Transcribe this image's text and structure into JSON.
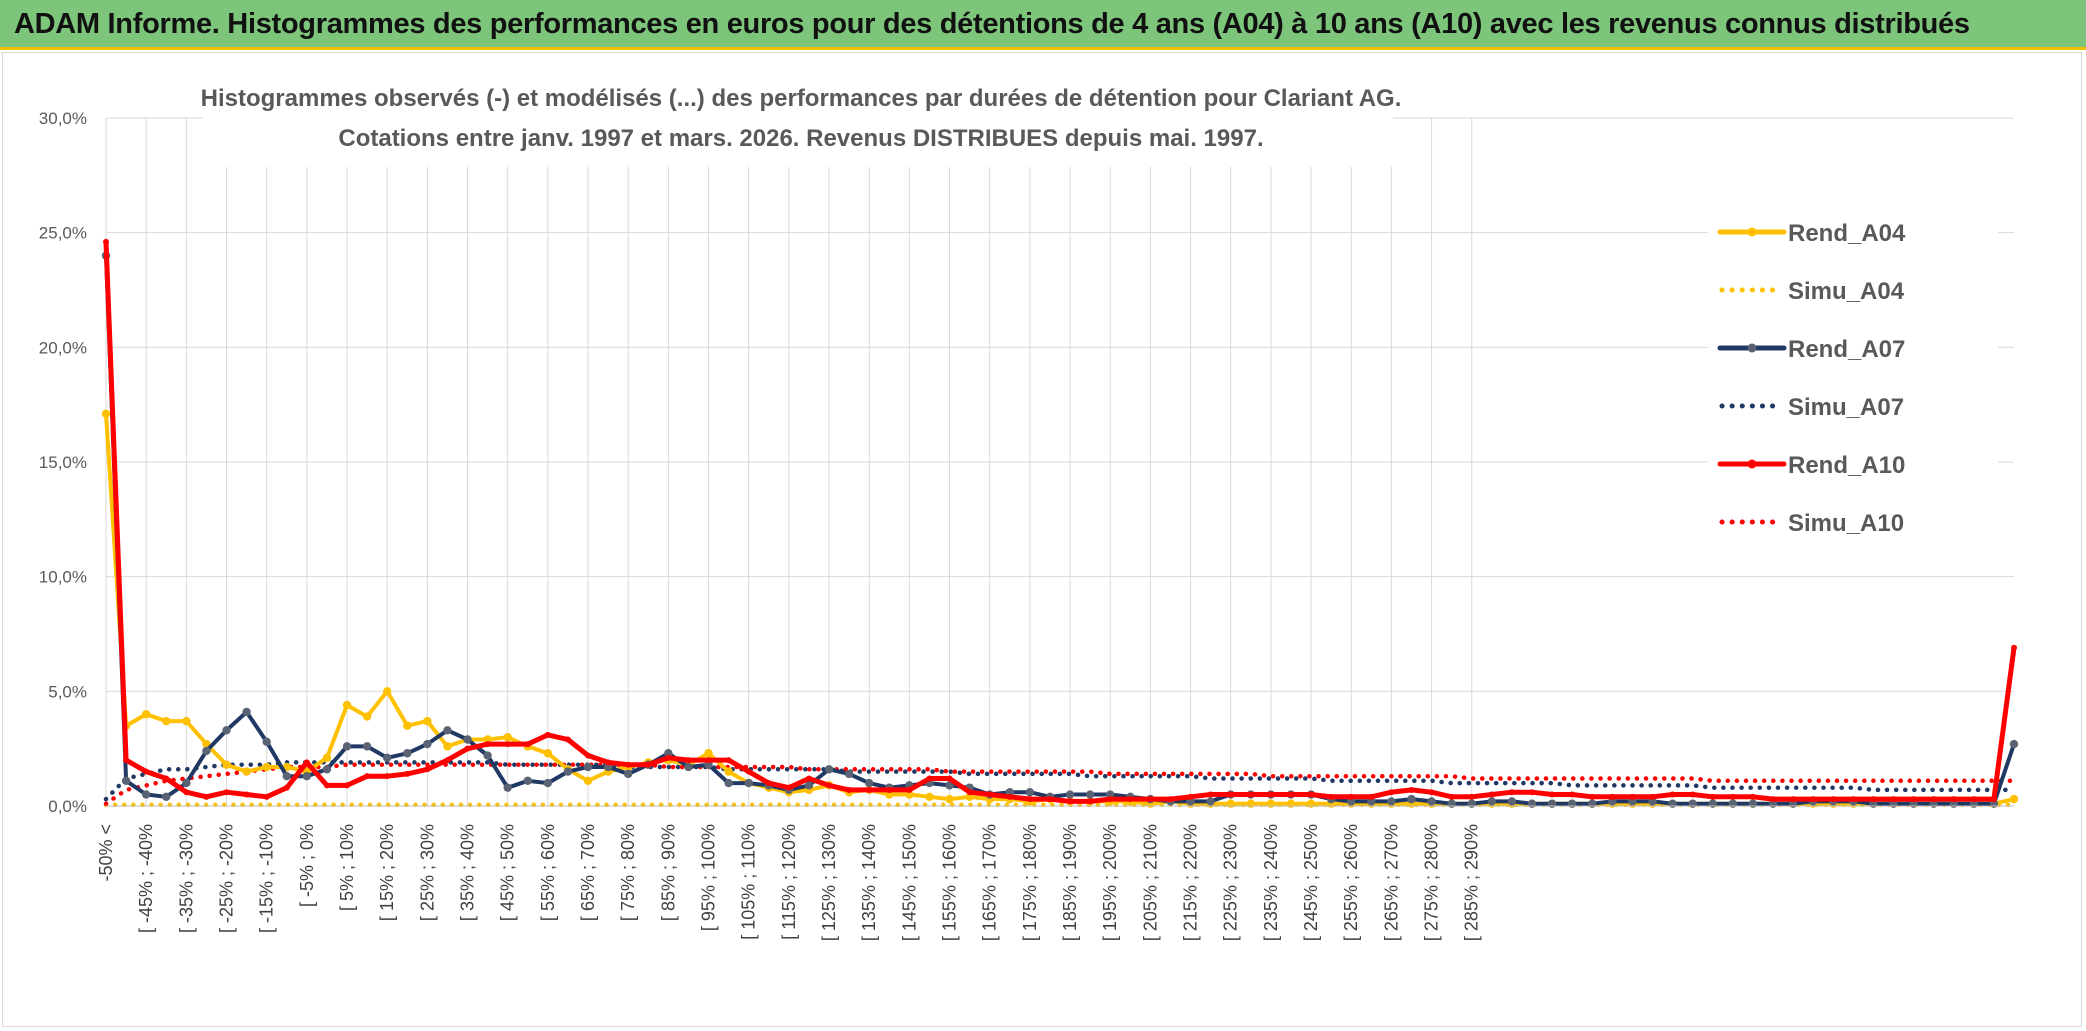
{
  "banner": {
    "title": "ADAM Informe. Histogrammes des performances en euros pour des détentions de 4 ans (A04) à 10 ans (A10) avec les revenus connus distribués"
  },
  "chart_data": {
    "type": "line",
    "title": "Histogrammes observés (-) et modélisés (...) des performances par durées de détention pour Clariant AG.",
    "subtitle": "Cotations entre janv. 1997 et mars. 2026. Revenus DISTRIBUES depuis mai. 1997.",
    "ylim": [
      0,
      30
    ],
    "yticks": [
      "0,0%",
      "5,0%",
      "10,0%",
      "15,0%",
      "20,0%",
      "25,0%",
      "30,0%"
    ],
    "grid": true,
    "legend_position": "right",
    "x_tick_labels": [
      "-50% <",
      "[ -45% ; -40%",
      "[ -35% ; -30%",
      "[ -25% ; -20%",
      "[ -15% ; -10%",
      "[ -5% ; 0%",
      "[ 5% ; 10%",
      "[ 15% ; 20%",
      "[ 25% ; 30%",
      "[ 35% ; 40%",
      "[ 45% ; 50%",
      "[ 55% ; 60%",
      "[ 65% ; 70%",
      "[ 75% ; 80%",
      "[ 85% ; 90%",
      "[ 95% ; 100%",
      "[ 105% ; 110%",
      "[ 115% ; 120%",
      "[ 125% ; 130%",
      "[ 135% ; 140%",
      "[ 145% ; 150%",
      "[ 155% ; 160%",
      "[ 165% ; 170%",
      "[ 175% ; 180%",
      "[ 185% ; 190%",
      "[ 195% ; 200%",
      "[ 205% ; 210%",
      "[ 215% ; 220%",
      "[ 225% ; 230%",
      "[ 235% ; 240%",
      "[ 245% ; 250%",
      "[ 255% ; 260%",
      "[ 265% ; 270%",
      "[ 275% ; 280%",
      "[ 285% ; 290%"
    ],
    "series": [
      {
        "name": "Rend_A04",
        "style": "solid",
        "color": "#ffc000",
        "values": [
          17.1,
          3.5,
          4.0,
          3.7,
          3.7,
          2.7,
          1.8,
          1.5,
          1.7,
          1.7,
          1.5,
          2.1,
          4.4,
          3.9,
          5.0,
          3.5,
          3.7,
          2.6,
          2.9,
          2.9,
          3.0,
          2.6,
          2.3,
          1.6,
          1.1,
          1.5,
          1.7,
          1.9,
          2.0,
          1.8,
          2.3,
          1.5,
          1.0,
          0.8,
          0.6,
          0.7,
          0.9,
          0.6,
          0.7,
          0.5,
          0.5,
          0.4,
          0.3,
          0.4,
          0.3,
          0.3,
          0.2,
          0.3,
          0.2,
          0.2,
          0.2,
          0.2,
          0.1,
          0.2,
          0.1,
          0.1,
          0.1,
          0.1,
          0.1,
          0.1,
          0.1,
          0.1,
          0.1,
          0.1,
          0.1,
          0.1,
          0.1,
          0.1,
          0.1,
          0.1,
          0.1,
          0.1,
          0.1,
          0.1,
          0.1,
          0.1,
          0.1,
          0.1,
          0.1,
          0.1,
          0.1,
          0.1,
          0.1,
          0.1,
          0.1,
          0.1,
          0.1,
          0.1,
          0.1,
          0.1,
          0.1,
          0.1,
          0.1,
          0.1,
          0.1,
          0.3
        ]
      },
      {
        "name": "Simu_A04",
        "style": "dotted",
        "color": "#ffc000",
        "values": [
          0.05,
          0.05,
          0.05,
          0.05,
          0.05,
          0.05,
          0.05,
          0.05,
          0.05,
          0.05,
          0.05,
          0.05,
          0.05,
          0.05,
          0.05,
          0.05,
          0.05,
          0.05,
          0.05,
          0.05,
          0.05,
          0.05,
          0.05,
          0.05,
          0.05,
          0.05,
          0.05,
          0.05,
          0.05,
          0.05,
          0.05,
          0.05,
          0.05,
          0.05,
          0.05,
          0.05,
          0.05,
          0.05,
          0.05,
          0.05,
          0.05,
          0.05,
          0.05,
          0.05,
          0.05,
          0.05,
          0.05,
          0.05,
          0.05,
          0.05,
          0.05,
          0.05,
          0.05,
          0.05,
          0.05,
          0.05,
          0.05,
          0.05,
          0.05,
          0.05,
          0.05,
          0.05,
          0.05,
          0.05,
          0.05,
          0.05,
          0.05,
          0.05,
          0.05,
          0.05,
          0.05,
          0.05,
          0.05,
          0.05,
          0.05,
          0.05,
          0.05,
          0.05,
          0.05,
          0.05,
          0.05,
          0.05,
          0.05,
          0.05,
          0.05,
          0.05,
          0.05,
          0.05,
          0.05,
          0.05,
          0.05,
          0.05,
          0.05,
          0.05,
          0.05,
          0.05
        ]
      },
      {
        "name": "Rend_A07",
        "style": "solid",
        "color": "#1f3864",
        "values": [
          24.0,
          1.1,
          0.5,
          0.4,
          1.0,
          2.4,
          3.3,
          4.1,
          2.8,
          1.3,
          1.3,
          1.6,
          2.6,
          2.6,
          2.1,
          2.3,
          2.7,
          3.3,
          2.9,
          2.2,
          0.8,
          1.1,
          1.0,
          1.5,
          1.7,
          1.7,
          1.4,
          1.8,
          2.3,
          1.7,
          1.8,
          1.0,
          1.0,
          0.9,
          0.7,
          0.9,
          1.6,
          1.4,
          1.0,
          0.8,
          0.9,
          1.0,
          0.9,
          0.8,
          0.5,
          0.6,
          0.6,
          0.4,
          0.5,
          0.5,
          0.5,
          0.4,
          0.3,
          0.2,
          0.2,
          0.2,
          0.5,
          0.5,
          0.5,
          0.5,
          0.5,
          0.3,
          0.2,
          0.2,
          0.2,
          0.3,
          0.2,
          0.1,
          0.1,
          0.2,
          0.2,
          0.1,
          0.1,
          0.1,
          0.1,
          0.2,
          0.2,
          0.2,
          0.1,
          0.1,
          0.1,
          0.1,
          0.1,
          0.1,
          0.1,
          0.2,
          0.2,
          0.2,
          0.1,
          0.1,
          0.1,
          0.1,
          0.1,
          0.1,
          0.1,
          2.7
        ]
      },
      {
        "name": "Simu_A07",
        "style": "dotted",
        "color": "#1f3864",
        "values": [
          0.3,
          1.2,
          1.4,
          1.6,
          1.6,
          1.7,
          1.8,
          1.8,
          1.8,
          1.9,
          1.9,
          1.9,
          1.9,
          1.9,
          1.9,
          1.9,
          1.9,
          1.9,
          1.9,
          1.9,
          1.8,
          1.8,
          1.8,
          1.8,
          1.8,
          1.8,
          1.7,
          1.7,
          1.7,
          1.7,
          1.7,
          1.6,
          1.6,
          1.6,
          1.6,
          1.6,
          1.6,
          1.5,
          1.5,
          1.5,
          1.5,
          1.5,
          1.5,
          1.4,
          1.4,
          1.4,
          1.4,
          1.4,
          1.4,
          1.3,
          1.3,
          1.3,
          1.3,
          1.3,
          1.3,
          1.2,
          1.2,
          1.2,
          1.2,
          1.2,
          1.2,
          1.1,
          1.1,
          1.1,
          1.1,
          1.1,
          1.1,
          1.0,
          1.0,
          1.0,
          1.0,
          1.0,
          1.0,
          0.9,
          0.9,
          0.9,
          0.9,
          0.9,
          0.9,
          0.9,
          0.8,
          0.8,
          0.8,
          0.8,
          0.8,
          0.8,
          0.8,
          0.8,
          0.7,
          0.7,
          0.7,
          0.7,
          0.7,
          0.7,
          0.7,
          0.7
        ]
      },
      {
        "name": "Rend_A10",
        "style": "solid",
        "color": "#ff0000",
        "values": [
          24.6,
          2.0,
          1.5,
          1.2,
          0.6,
          0.4,
          0.6,
          0.5,
          0.4,
          0.8,
          1.9,
          0.9,
          0.9,
          1.3,
          1.3,
          1.4,
          1.6,
          2.0,
          2.5,
          2.7,
          2.7,
          2.7,
          3.1,
          2.9,
          2.2,
          1.9,
          1.8,
          1.8,
          2.1,
          2.0,
          2.0,
          2.0,
          1.5,
          1.0,
          0.8,
          1.2,
          0.9,
          0.7,
          0.7,
          0.7,
          0.7,
          1.2,
          1.2,
          0.6,
          0.5,
          0.4,
          0.3,
          0.3,
          0.2,
          0.2,
          0.3,
          0.3,
          0.3,
          0.3,
          0.4,
          0.5,
          0.5,
          0.5,
          0.5,
          0.5,
          0.5,
          0.4,
          0.4,
          0.4,
          0.6,
          0.7,
          0.6,
          0.4,
          0.4,
          0.5,
          0.6,
          0.6,
          0.5,
          0.5,
          0.4,
          0.4,
          0.4,
          0.4,
          0.5,
          0.5,
          0.4,
          0.4,
          0.4,
          0.3,
          0.3,
          0.3,
          0.3,
          0.3,
          0.3,
          0.3,
          0.3,
          0.3,
          0.3,
          0.3,
          0.3,
          6.9
        ]
      },
      {
        "name": "Simu_A10",
        "style": "dotted",
        "color": "#ff0000",
        "values": [
          0.1,
          0.7,
          0.9,
          1.1,
          1.2,
          1.3,
          1.4,
          1.5,
          1.6,
          1.7,
          1.7,
          1.7,
          1.8,
          1.8,
          1.8,
          1.8,
          1.8,
          1.8,
          1.8,
          1.8,
          1.8,
          1.8,
          1.8,
          1.8,
          1.8,
          1.8,
          1.8,
          1.8,
          1.7,
          1.7,
          1.7,
          1.7,
          1.7,
          1.7,
          1.7,
          1.6,
          1.6,
          1.6,
          1.6,
          1.6,
          1.6,
          1.6,
          1.5,
          1.5,
          1.5,
          1.5,
          1.5,
          1.5,
          1.5,
          1.5,
          1.4,
          1.4,
          1.4,
          1.4,
          1.4,
          1.4,
          1.4,
          1.4,
          1.3,
          1.3,
          1.3,
          1.3,
          1.3,
          1.3,
          1.3,
          1.3,
          1.3,
          1.3,
          1.2,
          1.2,
          1.2,
          1.2,
          1.2,
          1.2,
          1.2,
          1.2,
          1.2,
          1.2,
          1.2,
          1.2,
          1.1,
          1.1,
          1.1,
          1.1,
          1.1,
          1.1,
          1.1,
          1.1,
          1.1,
          1.1,
          1.1,
          1.1,
          1.1,
          1.1,
          1.1,
          1.1
        ]
      }
    ]
  }
}
